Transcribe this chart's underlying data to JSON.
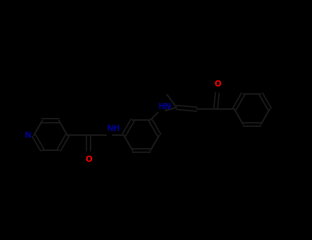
{
  "background_color": "#000000",
  "bond_color": "#1a1a1a",
  "nc": "#00008B",
  "oc": "#FF0000",
  "figsize": [
    4.55,
    3.5
  ],
  "dpi": 100,
  "xlim": [
    0,
    9.1
  ],
  "ylim": [
    0,
    7.0
  ]
}
